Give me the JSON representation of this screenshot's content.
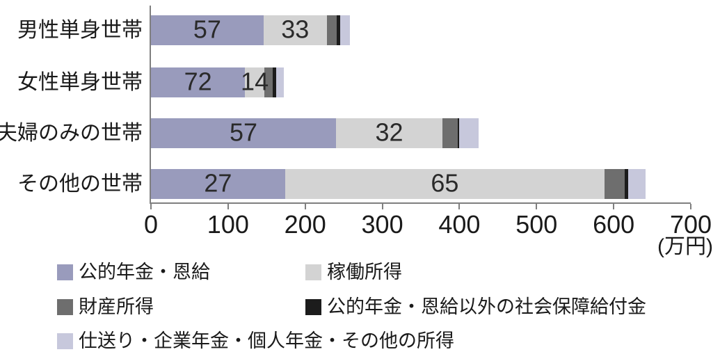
{
  "chart_data": {
    "type": "bar",
    "subtype": "horizontal-stacked",
    "title": "",
    "grid": false,
    "legend_position": "bottom-left",
    "x_axis": {
      "min": 0,
      "max": 700,
      "ticks": [
        0,
        100,
        200,
        300,
        400,
        500,
        600,
        700
      ],
      "unit_label": "(万円)"
    },
    "categories": [
      "男性単身世帯",
      "女性単身世帯",
      "夫婦のみの世帯",
      "その他の世帯"
    ],
    "series": [
      {
        "name": "公的年金・恩給",
        "color": "#999bbc",
        "values": [
          146,
          122,
          240,
          174
        ],
        "percent_labels": [
          "57",
          "72",
          "57",
          "27"
        ]
      },
      {
        "name": "稼働所得",
        "color": "#d3d3d3",
        "values": [
          82,
          25,
          138,
          414
        ],
        "percent_labels": [
          "33",
          "14",
          "32",
          "65"
        ]
      },
      {
        "name": "財産所得",
        "color": "#6e6e6e",
        "values": [
          13,
          11,
          20,
          26
        ],
        "percent_labels": [
          "",
          "",
          "",
          ""
        ]
      },
      {
        "name": "公的年金・恩給以外の社会保障給付金",
        "color": "#1c1c1c",
        "values": [
          4,
          4,
          2,
          5
        ],
        "percent_labels": [
          "",
          "",
          "",
          ""
        ]
      },
      {
        "name": "仕送り・企業年金・個人年金・その他の所得",
        "color": "#c7c8dc",
        "values": [
          13,
          10,
          25,
          22
        ],
        "percent_labels": [
          "",
          "",
          "",
          ""
        ]
      }
    ],
    "totals_approx": [
      258,
      172,
      425,
      641
    ],
    "axis_color": "#7f7f7f"
  }
}
